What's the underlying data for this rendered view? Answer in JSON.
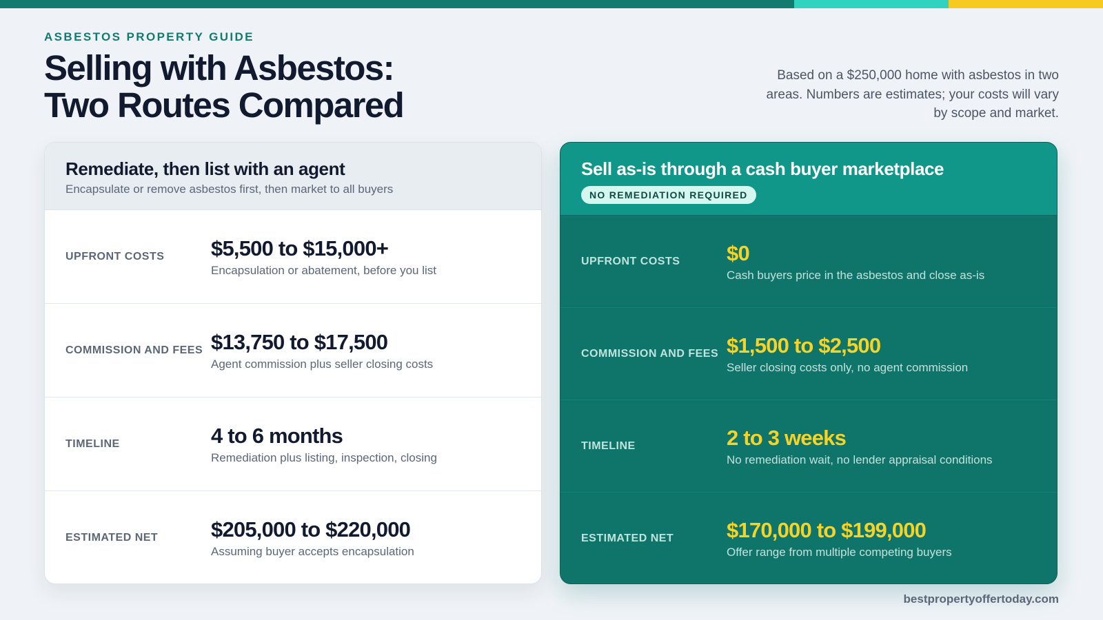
{
  "colors": {
    "topbar": [
      "#127a6f",
      "#2fd3c0",
      "#f7ca22"
    ],
    "accent_teal": "#0f7469",
    "accent_yellow": "#f5d327",
    "background": "#eff3f7"
  },
  "header": {
    "eyebrow": "ASBESTOS PROPERTY GUIDE",
    "title_line1": "Selling with Asbestos:",
    "title_line2": "Two Routes Compared",
    "note": "Based on a $250,000 home with asbestos in two areas. Numbers are estimates; your costs will vary by scope and market."
  },
  "left_card": {
    "title": "Remediate, then list with an agent",
    "subtitle": "Encapsulate or remove asbestos first, then market to all buyers",
    "rows": [
      {
        "label": "UPFRONT COSTS",
        "value": "$5,500 to $15,000+",
        "desc": "Encapsulation or abatement, before you list"
      },
      {
        "label": "COMMISSION AND FEES",
        "value": "$13,750 to $17,500",
        "desc": "Agent commission plus seller closing costs"
      },
      {
        "label": "TIMELINE",
        "value": "4 to 6 months",
        "desc": "Remediation plus listing, inspection, closing"
      },
      {
        "label": "ESTIMATED NET",
        "value": "$205,000 to $220,000",
        "desc": "Assuming buyer accepts encapsulation"
      }
    ]
  },
  "right_card": {
    "title": "Sell as-is through a cash buyer marketplace",
    "badge": "NO REMEDIATION REQUIRED",
    "rows": [
      {
        "label": "UPFRONT COSTS",
        "value": "$0",
        "desc": "Cash buyers price in the asbestos and close as-is"
      },
      {
        "label": "COMMISSION AND FEES",
        "value": "$1,500 to $2,500",
        "desc": "Seller closing costs only, no agent commission"
      },
      {
        "label": "TIMELINE",
        "value": "2 to 3 weeks",
        "desc": "No remediation wait, no lender appraisal conditions"
      },
      {
        "label": "ESTIMATED NET",
        "value": "$170,000 to $199,000",
        "desc": "Offer range from multiple competing buyers"
      }
    ]
  },
  "footer": {
    "site": "bestpropertyoffertoday.com"
  }
}
